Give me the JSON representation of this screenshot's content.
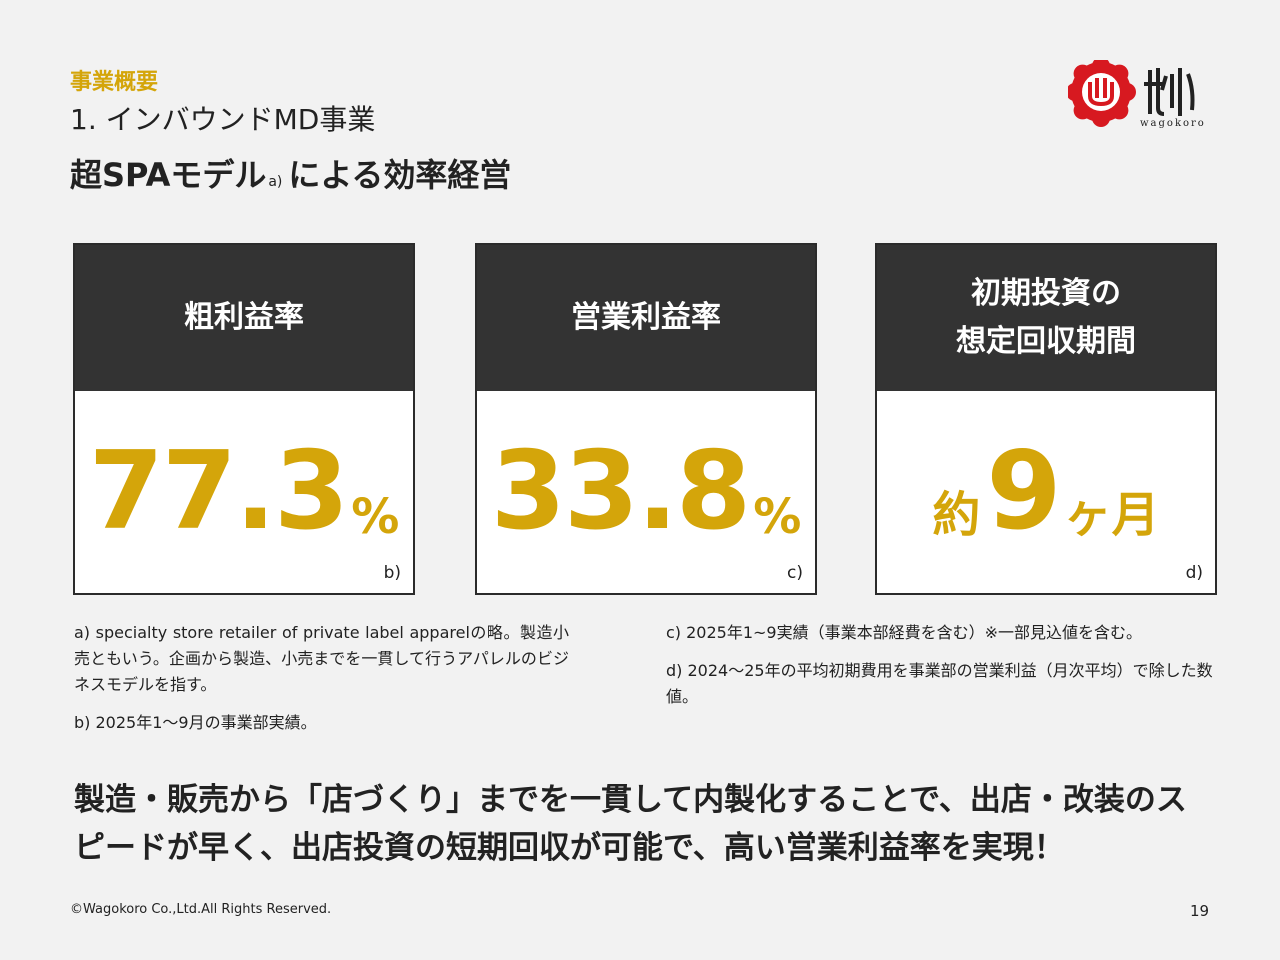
{
  "header": {
    "section_label": "事業概要",
    "section_title": "1. インバウンドMD事業",
    "headline_main": "超SPAモデル",
    "headline_sup": "a)",
    "headline_rest": "による効率経営",
    "logo_text": "wagokoro"
  },
  "cards": [
    {
      "title_lines": [
        "粗利益率"
      ],
      "prefix": "",
      "value": "77.3",
      "unit": "%",
      "note": "b)"
    },
    {
      "title_lines": [
        "営業利益率"
      ],
      "prefix": "",
      "value": "33.8",
      "unit": "%",
      "note": "c)"
    },
    {
      "title_lines": [
        "初期投資の",
        "想定回収期間"
      ],
      "prefix": "約",
      "value": "9",
      "unit": "ヶ月",
      "note": "d)"
    }
  ],
  "notes": {
    "a": "a) specialty store retailer of private label apparelの略。製造小売ともいう。企画から製造、小売までを一貫して行うアパレルのビジネスモデルを指す。",
    "b": "b) 2025年1～9月の事業部実績。",
    "c": "c) 2025年1~9実績（事業本部経費を含む）※一部見込値を含む。",
    "d": "d) 2024～25年の平均初期費用を事業部の営業利益（月次平均）で除した数値。"
  },
  "conclusion": "製造・販売から「店づくり」までを一貫して内製化することで、出店・改装のスピードが早く、出店投資の短期回収が可能で、高い営業利益率を実現！",
  "footer": {
    "copyright": "©Wagokoro Co.,Ltd.All Rights Reserved.",
    "page": "19"
  },
  "colors": {
    "accent": "#d4a50a",
    "dark": "#333333",
    "logo_red": "#d71920",
    "background": "#f2f2f2"
  }
}
